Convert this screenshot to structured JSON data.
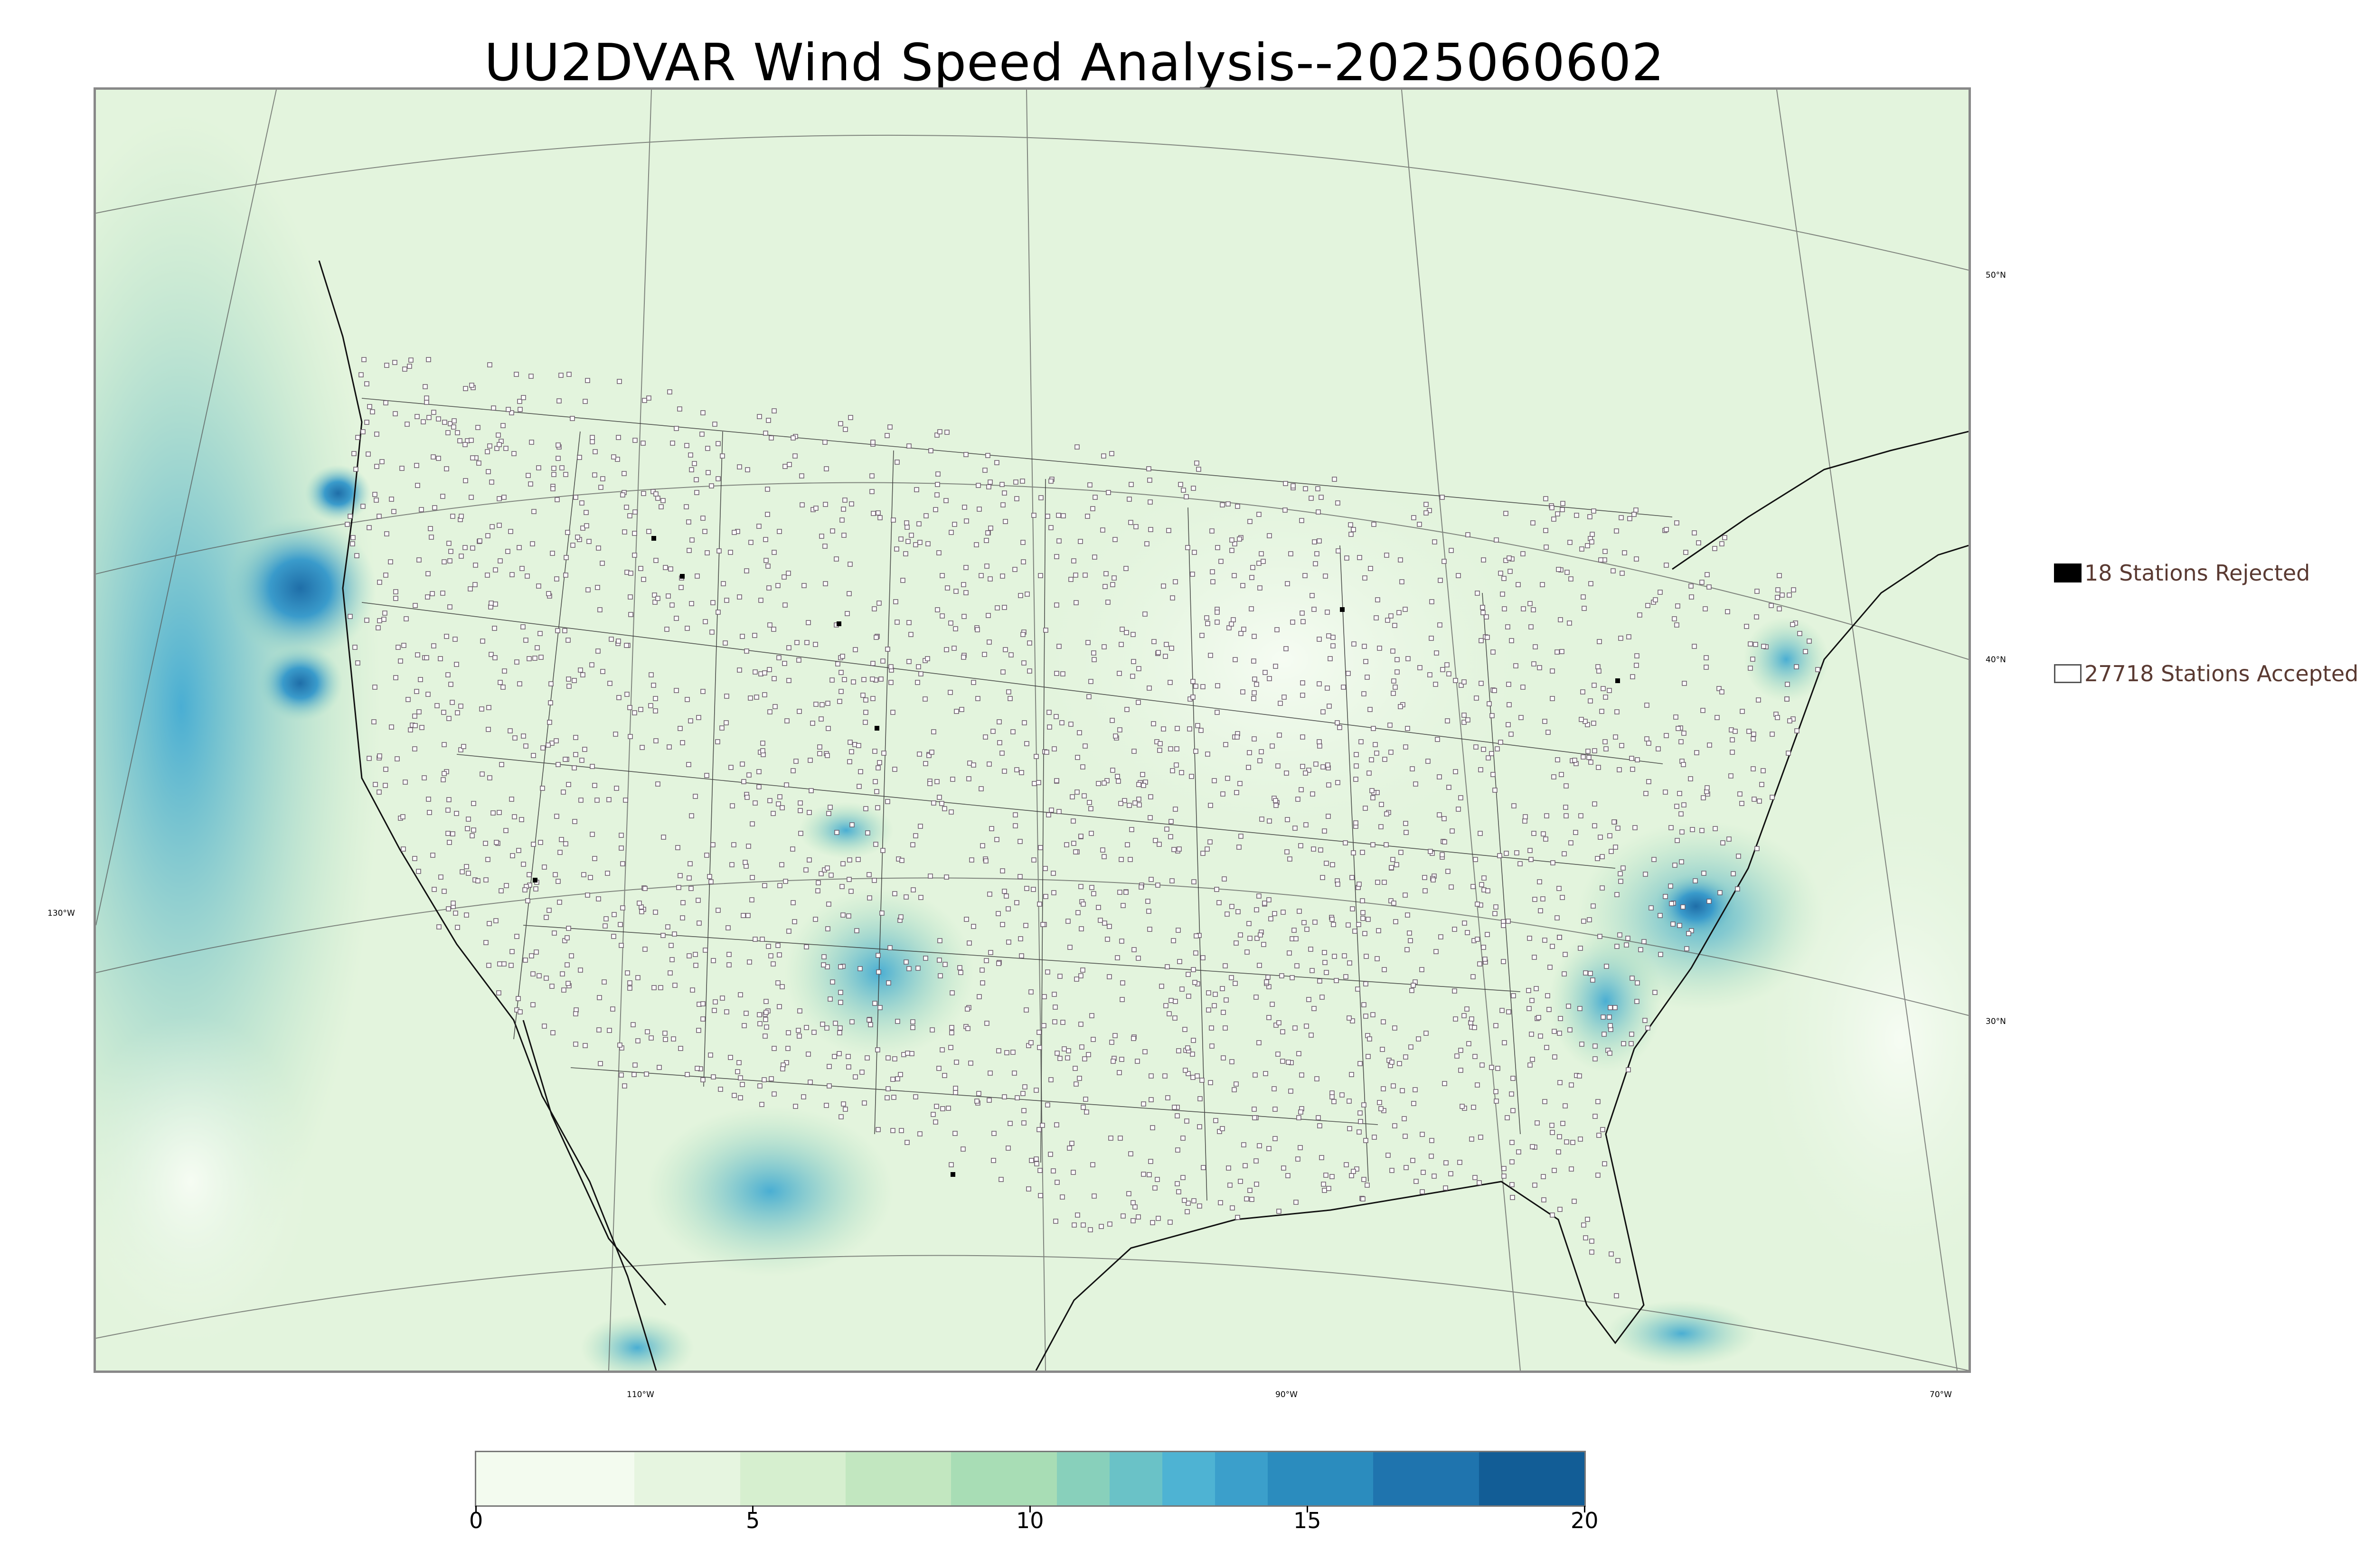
{
  "title": "UU2DVAR Wind Speed Analysis--2025060602",
  "lon_labels": [
    "110°W",
    "90°W",
    "70°W",
    "130°W"
  ],
  "lat_labels": [
    "50°N",
    "40°N",
    "30°N"
  ],
  "legend": {
    "rejected": {
      "label": "18 Stations Rejected",
      "count": 18
    },
    "accepted": {
      "label": "27718 Stations Accepted",
      "count": 27718
    }
  },
  "colorbar": {
    "ticks": [
      "0",
      "5",
      "10",
      "15",
      "20"
    ],
    "min": 0,
    "max": 20,
    "colors": [
      "#f3fbef",
      "#e6f5e0",
      "#d6efcf",
      "#c2e7c0",
      "#a8ddb5",
      "#88d0bb",
      "#6ac2c7",
      "#4eb3d3",
      "#3b9fcb",
      "#2b8cbe",
      "#1f74ae",
      "#125d96"
    ]
  }
}
